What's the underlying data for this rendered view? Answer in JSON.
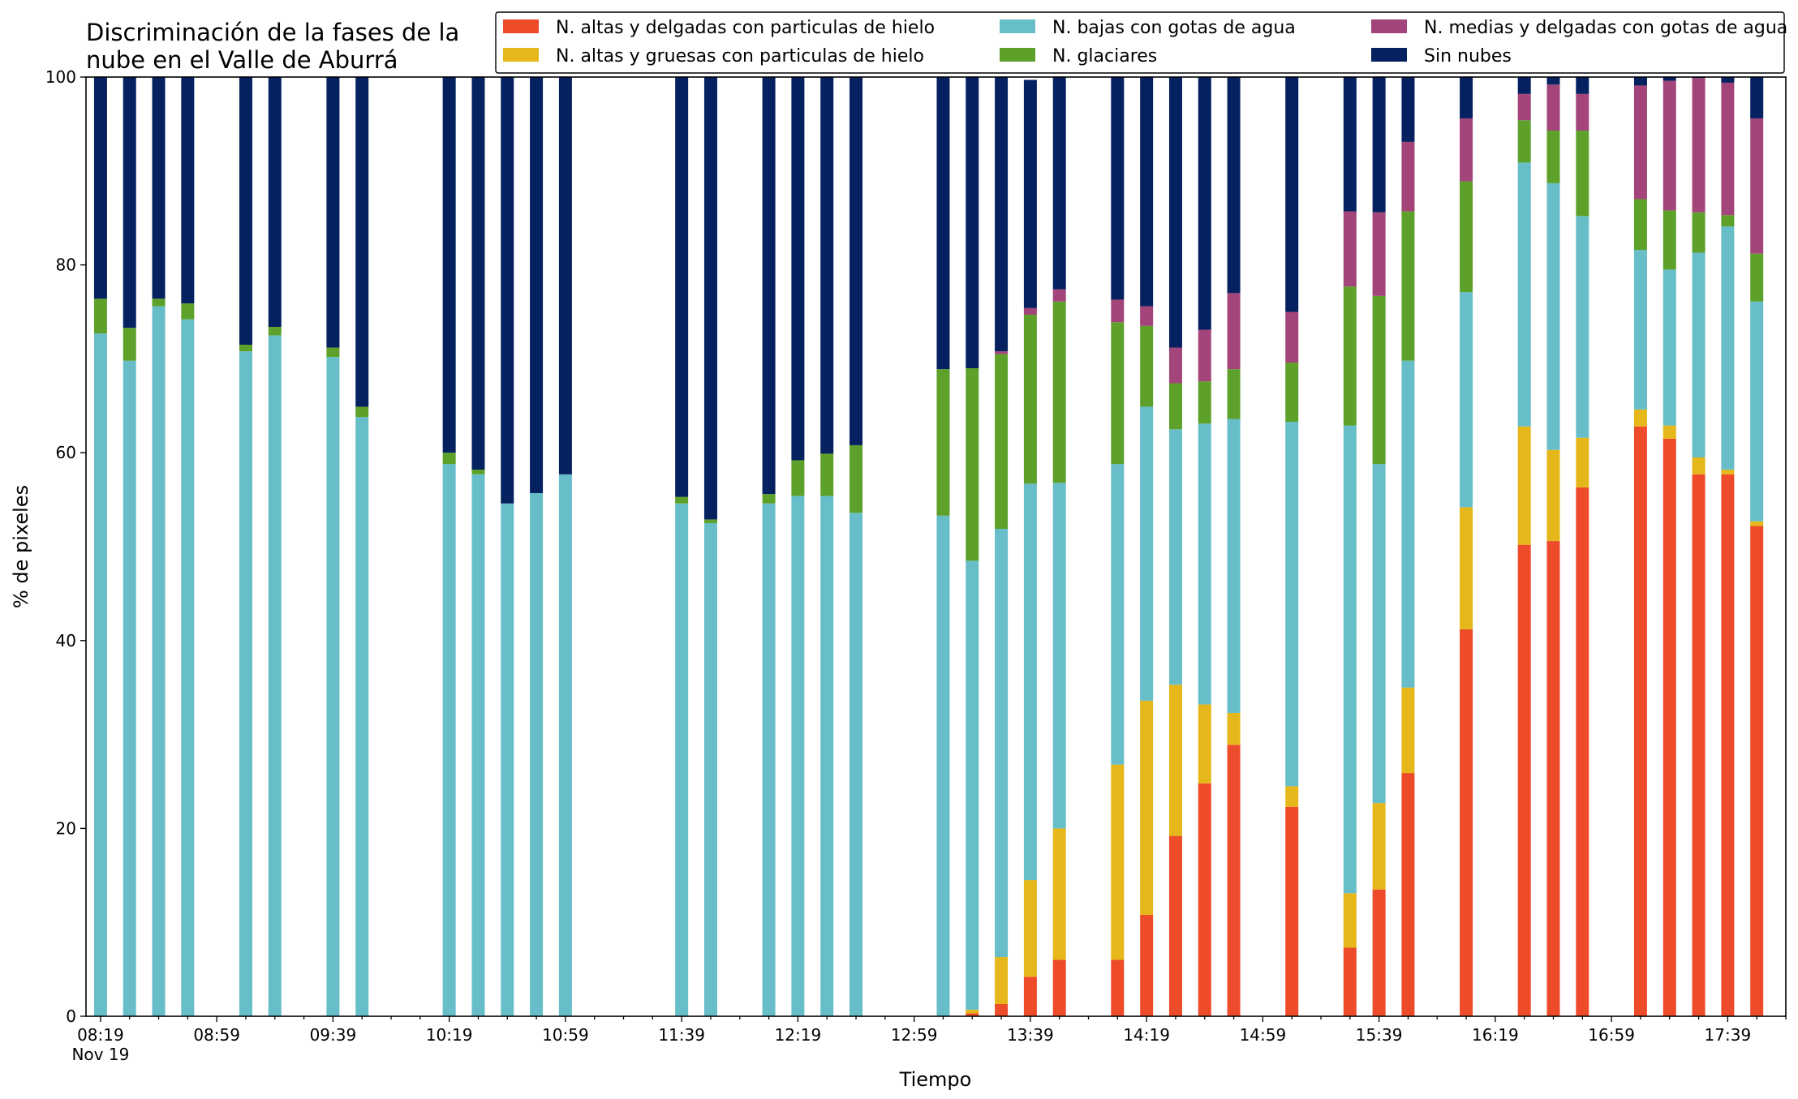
{
  "chart_data": {
    "type": "bar",
    "stacked": true,
    "title_lines": [
      "Discriminación de la fases de la",
      "nube en el Valle de Aburrá"
    ],
    "xlabel": "Tiempo",
    "ylabel": "% de pixeles",
    "ylim": [
      0,
      100
    ],
    "yticks": [
      0,
      20,
      40,
      60,
      80,
      100
    ],
    "xlim_minutes": [
      "08:14",
      "17:59"
    ],
    "xtick_labels": [
      "08:19",
      "08:59",
      "09:39",
      "10:19",
      "10:59",
      "11:39",
      "12:19",
      "12:59",
      "13:39",
      "14:19",
      "14:59",
      "15:39",
      "16:19",
      "16:59",
      "17:39"
    ],
    "xtick_sublabel": "Nov 19",
    "x": [
      "08:19",
      "08:29",
      "08:39",
      "08:49",
      "09:09",
      "09:19",
      "09:39",
      "09:49",
      "10:19",
      "10:29",
      "10:39",
      "10:49",
      "10:59",
      "11:39",
      "11:49",
      "12:09",
      "12:19",
      "12:29",
      "12:39",
      "13:09",
      "13:19",
      "13:29",
      "13:39",
      "13:49",
      "14:09",
      "14:19",
      "14:29",
      "14:39",
      "14:49",
      "15:09",
      "15:29",
      "15:39",
      "15:49",
      "16:09",
      "16:29",
      "16:39",
      "16:49",
      "17:09",
      "17:19",
      "17:29",
      "17:39",
      "17:49"
    ],
    "legend_position": "top-right",
    "legend_columns": 3,
    "series": [
      {
        "name": "N. altas y delgadas con particulas de hielo",
        "color": "#ee4b2b",
        "values": [
          0,
          0,
          0,
          0,
          0,
          0,
          0,
          0,
          0,
          0,
          0,
          0,
          0,
          0,
          0,
          0,
          0,
          0,
          0,
          0,
          0.3,
          1.3,
          4.2,
          6,
          6,
          10.8,
          19.2,
          24.8,
          28.9,
          22.3,
          7.3,
          13.5,
          25.9,
          41.2,
          50.2,
          50.6,
          56.3,
          62.8,
          61.5,
          57.7,
          57.7,
          52.2
        ]
      },
      {
        "name": "N. altas y gruesas con particulas de hielo",
        "color": "#e6b71a",
        "values": [
          0,
          0,
          0,
          0,
          0,
          0,
          0,
          0,
          0,
          0,
          0,
          0,
          0,
          0,
          0,
          0,
          0,
          0,
          0,
          0,
          0.4,
          5,
          10.3,
          14,
          20.8,
          22.8,
          16.1,
          8.4,
          3.4,
          2.2,
          5.8,
          9.2,
          9.1,
          13,
          12.6,
          9.7,
          5.3,
          1.8,
          1.4,
          1.8,
          0.5,
          0.5
        ]
      },
      {
        "name": "N. medias y delgadas con gotas de agua",
        "color": "#a3457b",
        "values": [
          0,
          0,
          0,
          0,
          0,
          0,
          0,
          0,
          0,
          0,
          0,
          0,
          0,
          0,
          0,
          0,
          0,
          0,
          0,
          0,
          0,
          0.3,
          0.7,
          1.3,
          2.4,
          2.1,
          3.8,
          5.5,
          8.1,
          5.4,
          8,
          8.9,
          7.4,
          6.7,
          2.8,
          4.9,
          3.9,
          12.1,
          13.8,
          14.3,
          14.1,
          14.4
        ]
      },
      {
        "name": "N. bajas con gotas de agua",
        "color": "#67bec8",
        "values": [
          72.7,
          69.8,
          75.6,
          74.2,
          70.8,
          72.5,
          70.2,
          63.8,
          58.8,
          57.7,
          54.6,
          55.7,
          57.7,
          54.6,
          52.5,
          54.6,
          55.4,
          55.4,
          53.6,
          53.3,
          47.8,
          45.6,
          42.2,
          36.8,
          32,
          31.3,
          27.2,
          29.9,
          31.3,
          38.8,
          49.8,
          36.1,
          34.8,
          22.9,
          28.1,
          28.4,
          23.6,
          17,
          16.6,
          21.8,
          25.9,
          23.4
        ]
      },
      {
        "name": "N. glaciares",
        "color": "#5ea12a",
        "values": [
          3.7,
          3.5,
          0.8,
          1.7,
          0.7,
          0.9,
          1,
          1.1,
          1.2,
          0.5,
          0,
          0,
          0,
          0.7,
          0.4,
          1,
          3.8,
          4.5,
          7.2,
          15.6,
          20.5,
          18.6,
          18,
          19.3,
          15.1,
          8.6,
          4.9,
          4.5,
          5.3,
          6.3,
          14.8,
          17.9,
          15.9,
          11.8,
          4.5,
          5.6,
          9.1,
          5.4,
          6.3,
          4.3,
          1.2,
          5.1
        ]
      },
      {
        "name": "Sin nubes",
        "color": "#052160",
        "values": [
          23.6,
          26.7,
          23.6,
          24.1,
          28.5,
          26.6,
          28.8,
          35.1,
          40,
          41.8,
          45.4,
          44.3,
          42.3,
          44.7,
          47.1,
          44.4,
          40.8,
          40.1,
          39.2,
          31.1,
          31,
          29.2,
          24.3,
          22.6,
          23.7,
          24.4,
          28.8,
          26.9,
          23,
          25,
          14.3,
          14.4,
          6.9,
          4.4,
          1.8,
          0.8,
          1.8,
          0.9,
          0.4,
          0.1,
          0.6,
          4.4
        ]
      }
    ]
  }
}
